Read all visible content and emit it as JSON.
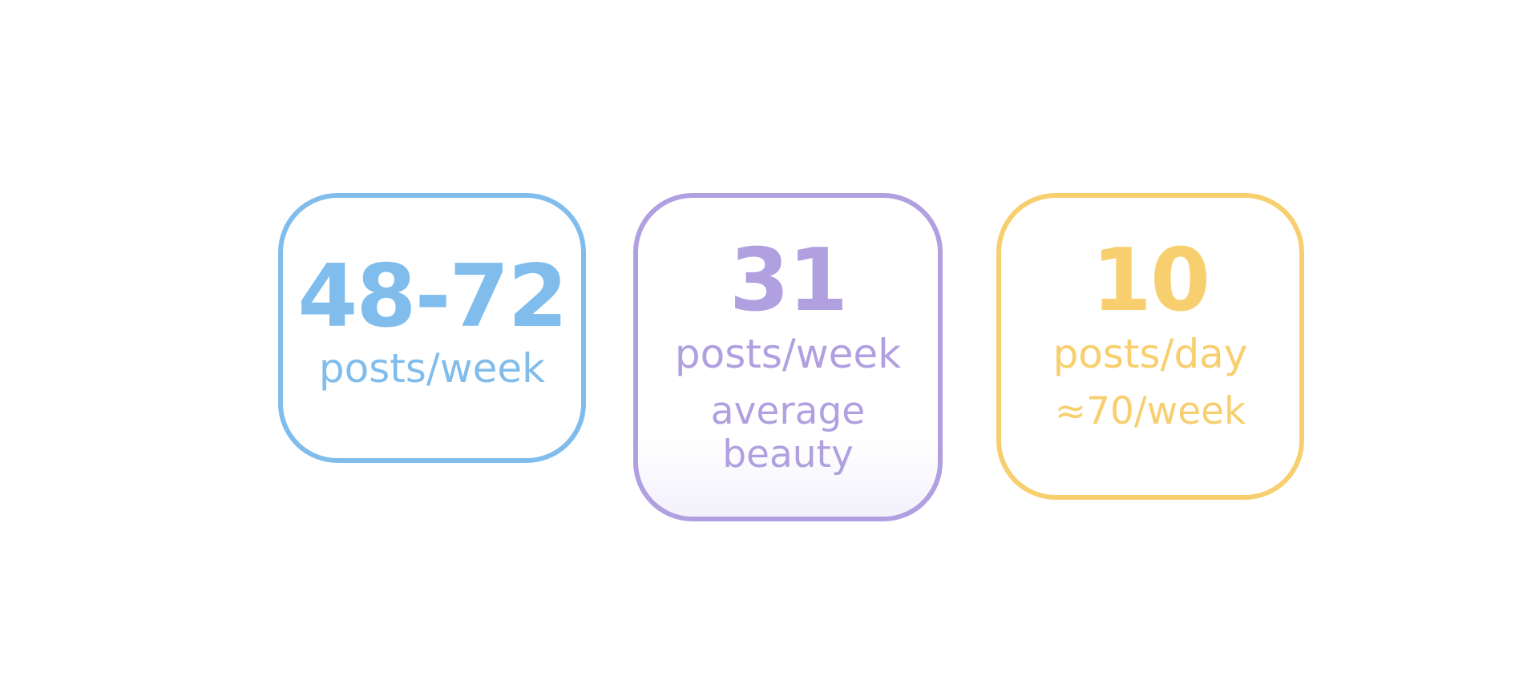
{
  "cards": [
    {
      "value": "48-72",
      "unit": "posts/week",
      "notes": []
    },
    {
      "value": "31",
      "unit": "posts/week",
      "notes": [
        "average",
        "beauty"
      ]
    },
    {
      "value": "10",
      "unit": "posts/day",
      "notes": [
        "≈70/week"
      ]
    }
  ]
}
